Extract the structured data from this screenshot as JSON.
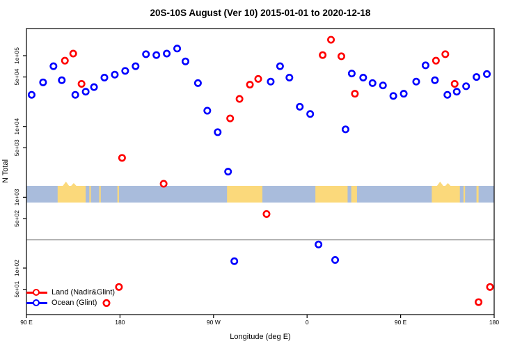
{
  "chart_data": {
    "type": "scatter",
    "title": "20S-10S August (Ver 10)  2015-01-01 to 2020-12-18",
    "xlabel": "Longitude (deg E)",
    "ylabel": "N Total",
    "x_axis": {
      "range_deg_e": [
        90,
        540
      ],
      "ticks": [
        {
          "value": 90,
          "label": "90 E"
        },
        {
          "value": 180,
          "label": "180"
        },
        {
          "value": 270,
          "label": "90 W"
        },
        {
          "value": 360,
          "label": "0"
        },
        {
          "value": 450,
          "label": "90 E"
        },
        {
          "value": 540,
          "label": "180"
        }
      ]
    },
    "y_axis": {
      "scale": "log10",
      "range": [
        22,
        250000
      ],
      "ticks": [
        {
          "value": 50,
          "label": "5e+01"
        },
        {
          "value": 100,
          "label": "1e+02"
        },
        {
          "value": 500,
          "label": "5e+02"
        },
        {
          "value": 1000,
          "label": "1e+03"
        },
        {
          "value": 5000,
          "label": "5e+03"
        },
        {
          "value": 10000,
          "label": "1e+04"
        },
        {
          "value": 50000,
          "label": "5e+04"
        },
        {
          "value": 100000,
          "label": "1e+05"
        }
      ]
    },
    "reference_line": {
      "y_value": 250,
      "color": "#8A8A8A"
    },
    "map_band": {
      "description": "world land/ocean strip for the 20S-10S latitude band",
      "ocean_color": "#A9BCDC",
      "land_color": "#FBD97B",
      "value_top": 1500,
      "value_bottom": 830,
      "land_segments_deg_e": [
        {
          "from": 120,
          "to": 147,
          "bumpy": true
        },
        {
          "from": 150.5,
          "to": 152,
          "bumpy": false
        },
        {
          "from": 160,
          "to": 161.5,
          "bumpy": false
        },
        {
          "from": 177.5,
          "to": 179,
          "bumpy": false
        },
        {
          "from": 283,
          "to": 317,
          "bumpy": false
        },
        {
          "from": 368,
          "to": 399,
          "bumpy": false
        },
        {
          "from": 402.5,
          "to": 408,
          "bumpy": false
        },
        {
          "from": 480,
          "to": 507,
          "bumpy": true
        },
        {
          "from": 510.5,
          "to": 512,
          "bumpy": false
        },
        {
          "from": 523,
          "to": 525,
          "bumpy": false
        }
      ]
    },
    "series": [
      {
        "name": "Land (Nadir&Glint)",
        "color": "#FF0000",
        "marker": "open-circle",
        "points": [
          [
            127,
            85000
          ],
          [
            135,
            107000
          ],
          [
            143,
            40000
          ],
          [
            167,
            32
          ],
          [
            179,
            54
          ],
          [
            182,
            3600
          ],
          [
            222,
            1550
          ],
          [
            286,
            13000
          ],
          [
            295,
            24500
          ],
          [
            305,
            39000
          ],
          [
            313,
            47000
          ],
          [
            321,
            580
          ],
          [
            375,
            102000
          ],
          [
            383,
            168000
          ],
          [
            393,
            98000
          ],
          [
            406,
            29000
          ],
          [
            484,
            85000
          ],
          [
            493,
            105000
          ],
          [
            502,
            40000
          ],
          [
            525,
            33
          ],
          [
            536,
            54
          ]
        ]
      },
      {
        "name": "Ocean (Glint)",
        "color": "#0000FF",
        "marker": "open-circle",
        "points": [
          [
            95,
            28000
          ],
          [
            106,
            42000
          ],
          [
            116,
            71000
          ],
          [
            124,
            45000
          ],
          [
            137,
            28000
          ],
          [
            147,
            31000
          ],
          [
            155,
            36000
          ],
          [
            165,
            49000
          ],
          [
            175,
            54000
          ],
          [
            185,
            61000
          ],
          [
            195,
            71000
          ],
          [
            205,
            105000
          ],
          [
            215,
            102000
          ],
          [
            225,
            107000
          ],
          [
            235,
            126000
          ],
          [
            243,
            83000
          ],
          [
            255,
            41000
          ],
          [
            264,
            16700
          ],
          [
            274,
            8300
          ],
          [
            284,
            2300
          ],
          [
            290,
            125
          ],
          [
            325,
            43000
          ],
          [
            334,
            71000
          ],
          [
            343,
            49000
          ],
          [
            353,
            19000
          ],
          [
            363,
            15000
          ],
          [
            371,
            215
          ],
          [
            387,
            130
          ],
          [
            397,
            9100
          ],
          [
            403,
            56000
          ],
          [
            414,
            49000
          ],
          [
            423,
            41000
          ],
          [
            433,
            38000
          ],
          [
            443,
            27000
          ],
          [
            453,
            29000
          ],
          [
            465,
            43000
          ],
          [
            474,
            73000
          ],
          [
            483,
            45000
          ],
          [
            495,
            28000
          ],
          [
            504,
            31000
          ],
          [
            513,
            37000
          ],
          [
            523,
            50000
          ],
          [
            533,
            55000
          ]
        ]
      }
    ],
    "legend_position": "bottom-left"
  }
}
